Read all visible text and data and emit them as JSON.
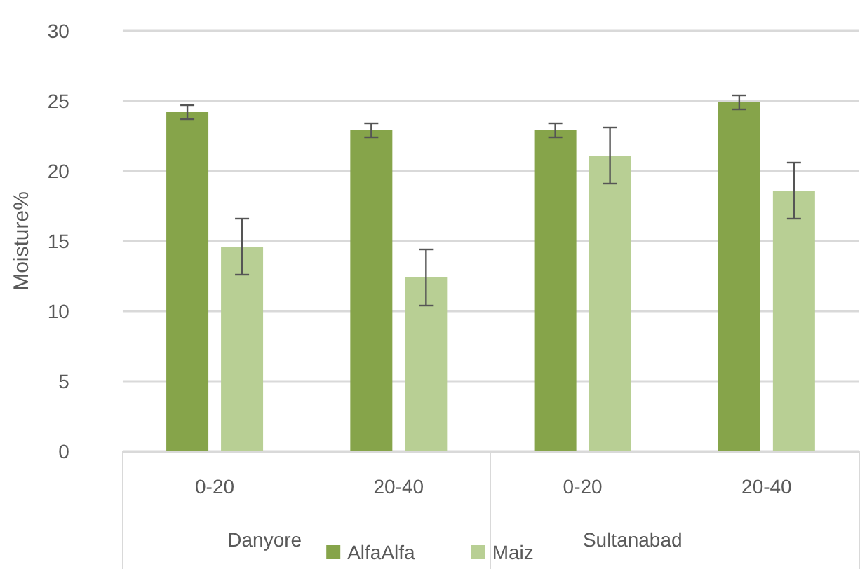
{
  "chart_data": {
    "type": "bar",
    "ylabel": "Moisture%",
    "categories": [
      "0-20",
      "20-40",
      "0-20",
      "20-40"
    ],
    "annotations": [
      "Danyore",
      "Sultanabad"
    ],
    "series": [
      {
        "name": "AlfaAlfa",
        "color": "#86a44a",
        "values": [
          24.2,
          22.9,
          22.9,
          24.9
        ],
        "errors": [
          0.5,
          0.5,
          0.5,
          0.5
        ]
      },
      {
        "name": "Maiz",
        "color": "#b8cf94",
        "values": [
          14.6,
          12.4,
          21.1,
          18.6
        ],
        "errors": [
          2.0,
          2.0,
          2.0,
          2.0
        ]
      }
    ],
    "ylim": [
      0,
      30
    ],
    "yticks": [
      0,
      5,
      10,
      15,
      20,
      25,
      30
    ],
    "grid": "y",
    "legend": "bottom"
  }
}
